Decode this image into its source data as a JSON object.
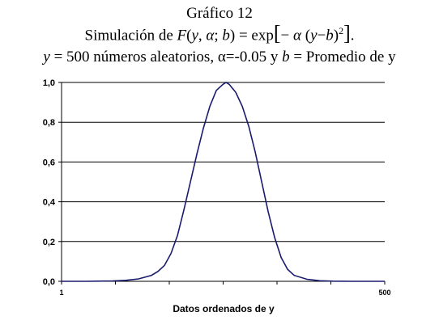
{
  "title": {
    "line1": "Gráfico 12",
    "line2": {
      "prefix": "Simulación de",
      "func": "F",
      "open_paren": "(",
      "arg_y": "y",
      "comma": ", ",
      "arg_alpha": "α",
      "semicolon": "; ",
      "arg_b": "b",
      "close_paren": ")",
      "equals_exp": " = exp",
      "left_bracket": "[",
      "minus": "− ",
      "alpha2": "α",
      "paren2_open": " (",
      "y2": "y",
      "minus2": "−",
      "b2": "b",
      "paren2_close": ")",
      "square": "2",
      "right_bracket": "]",
      "period": "."
    },
    "line3": {
      "y_var": "y",
      "part1": " = 500 números  aleatorios, α=-0.05 y ",
      "b_var": "b",
      "part2": " = Promedio de y"
    }
  },
  "chart_data": {
    "type": "line",
    "xlabel": "Datos ordenados de y",
    "ylabel": "",
    "xlim": [
      1,
      500
    ],
    "ylim": [
      0,
      1
    ],
    "x_tick_labels": [
      "1",
      "500"
    ],
    "y_tick_labels": [
      "0,0",
      "0,2",
      "0,4",
      "0,6",
      "0,8",
      "1,0"
    ],
    "y_tick_values": [
      0,
      0.2,
      0.4,
      0.6,
      0.8,
      1.0
    ],
    "grid": "horizontal",
    "legend": "none",
    "line_color": "#1a1a6e",
    "series": [
      {
        "x": [
          1,
          40,
          80,
          100,
          120,
          140,
          150,
          160,
          170,
          180,
          190,
          200,
          210,
          220,
          230,
          240,
          250,
          255,
          260,
          270,
          280,
          290,
          300,
          310,
          320,
          330,
          340,
          350,
          360,
          380,
          400,
          420,
          450,
          500
        ],
        "values": [
          0.0,
          0.0,
          0.002,
          0.005,
          0.012,
          0.03,
          0.05,
          0.08,
          0.14,
          0.23,
          0.36,
          0.5,
          0.64,
          0.77,
          0.88,
          0.96,
          0.99,
          1.0,
          0.99,
          0.95,
          0.88,
          0.78,
          0.65,
          0.5,
          0.35,
          0.22,
          0.12,
          0.06,
          0.03,
          0.01,
          0.003,
          0.001,
          0.0,
          0.0
        ]
      }
    ]
  }
}
